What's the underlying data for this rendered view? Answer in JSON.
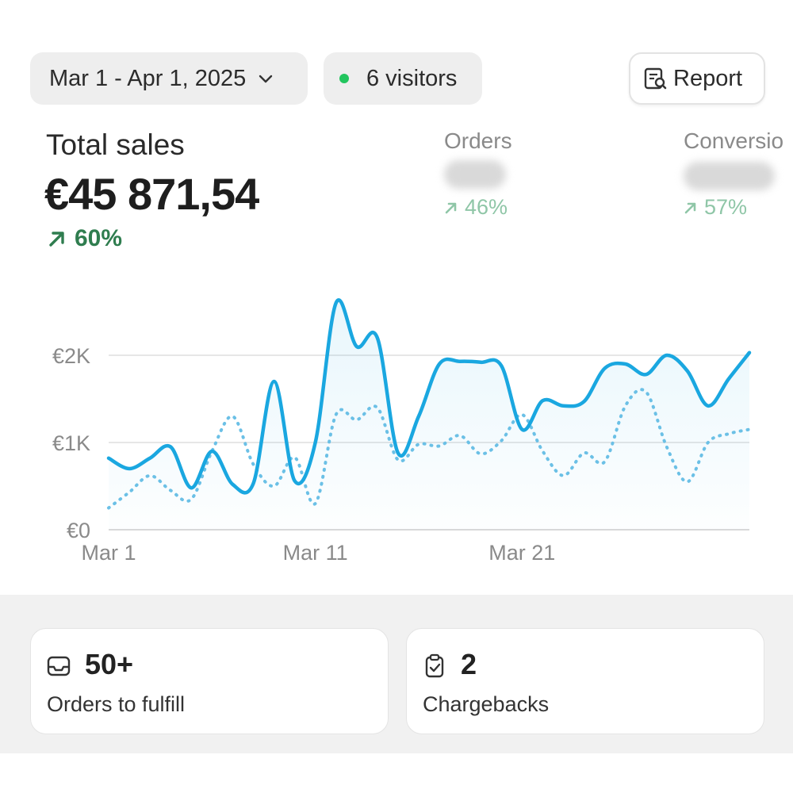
{
  "header": {
    "date_range": "Mar 1 - Apr 1, 2025",
    "visitors": "6 visitors",
    "report_label": "Report"
  },
  "summary": {
    "total_label": "Total sales",
    "total_value": "€45 871,54",
    "total_change": "60%"
  },
  "metrics": [
    {
      "label": "Orders",
      "change": "46%"
    },
    {
      "label": "Conversio",
      "change": "57%"
    }
  ],
  "chart_data": {
    "type": "line",
    "yticks": [
      "€0",
      "€1K",
      "€2K"
    ],
    "xticks": [
      "Mar 1",
      "Mar 11",
      "Mar 21"
    ],
    "ylim": [
      0,
      2000
    ],
    "series": [
      {
        "style": "solid",
        "color": "#1aa7e0",
        "values": [
          820,
          700,
          820,
          950,
          480,
          900,
          520,
          530,
          1700,
          560,
          1000,
          2600,
          2100,
          2200,
          880,
          1300,
          1900,
          1930,
          1920,
          1880,
          1150,
          1480,
          1420,
          1470,
          1850,
          1900,
          1780,
          2000,
          1820,
          1420,
          1730,
          2030
        ]
      },
      {
        "style": "dotted",
        "color": "#6bc0e6",
        "values": [
          250,
          430,
          620,
          450,
          350,
          900,
          1300,
          750,
          500,
          830,
          300,
          1320,
          1260,
          1400,
          800,
          980,
          960,
          1080,
          870,
          1020,
          1320,
          900,
          620,
          880,
          780,
          1420,
          1580,
          950,
          550,
          1000,
          1100,
          1150
        ]
      }
    ]
  },
  "cards": [
    {
      "value": "50+",
      "label": "Orders to fulfill",
      "icon": "inbox-icon"
    },
    {
      "value": "2",
      "label": "Chargebacks",
      "icon": "clipboard-check-icon"
    }
  ]
}
